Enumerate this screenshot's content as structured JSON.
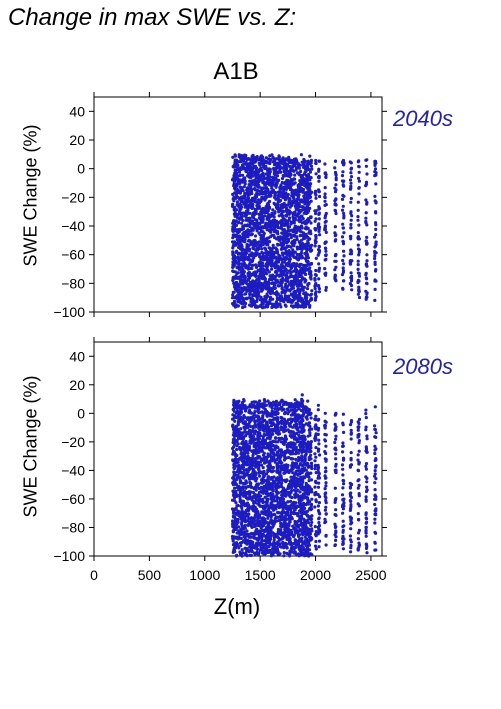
{
  "page_title": "Change in max SWE vs. Z:",
  "scenario": "A1B",
  "colors": {
    "points": "#1c1cc0",
    "period_text": "#2222aa"
  },
  "chart_data": [
    {
      "type": "scatter",
      "period": "2040s",
      "xlabel": "Z(m)",
      "ylabel": "SWE Change (%)",
      "xlim": [
        0,
        2600
      ],
      "ylim": [
        -100,
        50
      ],
      "yticks": [
        40,
        20,
        0,
        -20,
        -40,
        -60,
        -80,
        -100
      ],
      "xticks": [
        0,
        500,
        1000,
        1500,
        2000,
        2500
      ],
      "dense_band": {
        "x": [
          1250,
          1950
        ],
        "y": [
          -97,
          10
        ]
      },
      "columns": [
        {
          "x": 1960,
          "y": [
            -95,
            7
          ]
        },
        {
          "x": 2000,
          "y": [
            -92,
            6
          ]
        },
        {
          "x": 2030,
          "y": [
            -90,
            7
          ]
        },
        {
          "x": 2090,
          "y": [
            -85,
            5
          ]
        },
        {
          "x": 2180,
          "y": [
            -80,
            6
          ]
        },
        {
          "x": 2250,
          "y": [
            -85,
            6
          ]
        },
        {
          "x": 2320,
          "y": [
            -88,
            7
          ]
        },
        {
          "x": 2390,
          "y": [
            -90,
            7
          ]
        },
        {
          "x": 2460,
          "y": [
            -92,
            7
          ]
        },
        {
          "x": 2540,
          "y": [
            -92,
            6
          ]
        }
      ]
    },
    {
      "type": "scatter",
      "period": "2080s",
      "xlabel": "Z(m)",
      "ylabel": "SWE Change (%)",
      "xlim": [
        0,
        2600
      ],
      "ylim": [
        -100,
        50
      ],
      "yticks": [
        40,
        20,
        0,
        -20,
        -40,
        -60,
        -80,
        -100
      ],
      "xticks": [
        0,
        500,
        1000,
        1500,
        2000,
        2500
      ],
      "dense_band": {
        "x": [
          1250,
          1950
        ],
        "y": [
          -100,
          10
        ]
      },
      "columns": [
        {
          "x": 1880,
          "y": [
            -100,
            14
          ]
        },
        {
          "x": 1960,
          "y": [
            -100,
            6
          ]
        },
        {
          "x": 2000,
          "y": [
            -98,
            5
          ]
        },
        {
          "x": 2030,
          "y": [
            -95,
            7
          ]
        },
        {
          "x": 2090,
          "y": [
            -95,
            2
          ]
        },
        {
          "x": 2180,
          "y": [
            -95,
            1
          ]
        },
        {
          "x": 2250,
          "y": [
            -95,
            1
          ]
        },
        {
          "x": 2320,
          "y": [
            -98,
            0
          ]
        },
        {
          "x": 2390,
          "y": [
            -98,
            0
          ]
        },
        {
          "x": 2460,
          "y": [
            -98,
            5
          ]
        },
        {
          "x": 2540,
          "y": [
            -98,
            5
          ]
        }
      ]
    }
  ]
}
